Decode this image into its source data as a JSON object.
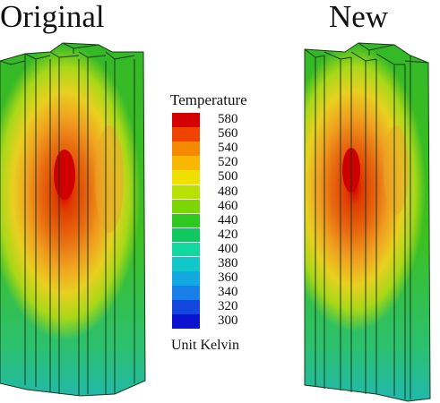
{
  "titles": {
    "left": "Original",
    "right": "New"
  },
  "legend": {
    "heading": "Temperature",
    "unit_label": "Unit Kelvin",
    "levels": [
      {
        "value": "580",
        "color": "#d40000"
      },
      {
        "value": "560",
        "color": "#ee4400"
      },
      {
        "value": "540",
        "color": "#f58a00"
      },
      {
        "value": "520",
        "color": "#f8b800"
      },
      {
        "value": "500",
        "color": "#f0e000"
      },
      {
        "value": "480",
        "color": "#b8e000"
      },
      {
        "value": "460",
        "color": "#7cd600"
      },
      {
        "value": "440",
        "color": "#2ec820"
      },
      {
        "value": "420",
        "color": "#10c860"
      },
      {
        "value": "400",
        "color": "#12d8a0"
      },
      {
        "value": "380",
        "color": "#10c8c8"
      },
      {
        "value": "360",
        "color": "#12a8e0"
      },
      {
        "value": "340",
        "color": "#1680e8"
      },
      {
        "value": "320",
        "color": "#1248e0"
      },
      {
        "value": "300",
        "color": "#0a14d0"
      }
    ]
  }
}
